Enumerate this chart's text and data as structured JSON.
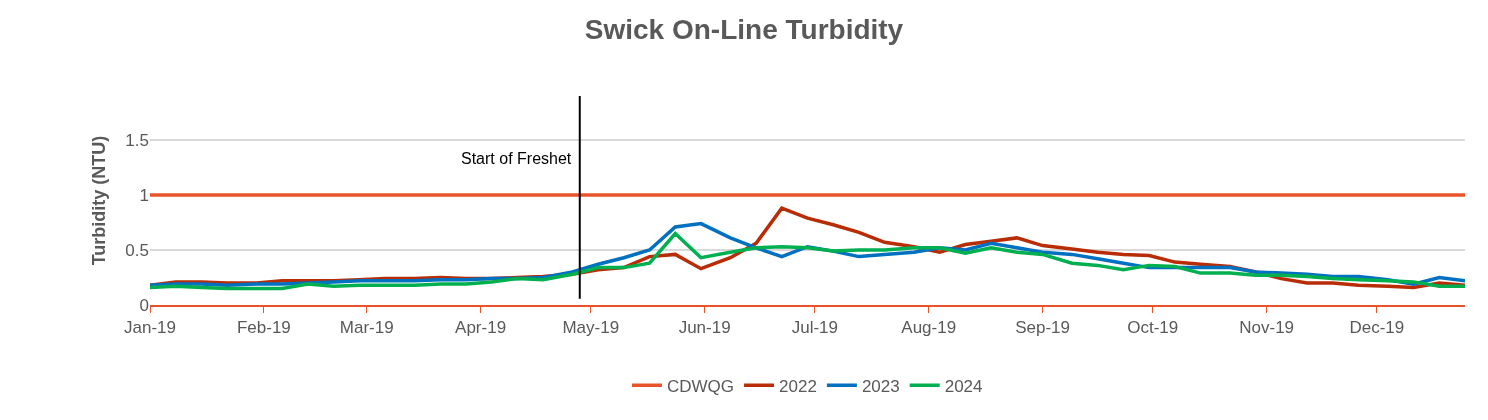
{
  "chart_data": {
    "type": "line",
    "title": "Swick On-Line Turbidity",
    "ylabel": "Turbidity (NTU)",
    "x": [
      "2019-01-01",
      "2019-01-08",
      "2019-01-15",
      "2019-01-22",
      "2019-01-30",
      "2019-02-06",
      "2019-02-13",
      "2019-02-20",
      "2019-02-27",
      "2019-03-06",
      "2019-03-14",
      "2019-03-21",
      "2019-03-28",
      "2019-04-04",
      "2019-04-11",
      "2019-04-18",
      "2019-04-26",
      "2019-05-03",
      "2019-05-10",
      "2019-05-17",
      "2019-05-24",
      "2019-05-31",
      "2019-06-08",
      "2019-06-15",
      "2019-06-22",
      "2019-06-29",
      "2019-07-06",
      "2019-07-13",
      "2019-07-20",
      "2019-07-28",
      "2019-08-04",
      "2019-08-11",
      "2019-08-18",
      "2019-08-25",
      "2019-09-01",
      "2019-09-09",
      "2019-09-16",
      "2019-09-23",
      "2019-09-30",
      "2019-10-07",
      "2019-10-14",
      "2019-10-22",
      "2019-10-29",
      "2019-11-05",
      "2019-11-12",
      "2019-11-19",
      "2019-11-26",
      "2019-12-04",
      "2019-12-11",
      "2019-12-18",
      "2019-12-25"
    ],
    "series": [
      {
        "name": "CDWQG",
        "color": "#e8542a",
        "values": [
          1,
          1,
          1,
          1,
          1,
          1,
          1,
          1,
          1,
          1,
          1,
          1,
          1,
          1,
          1,
          1,
          1,
          1,
          1,
          1,
          1,
          1,
          1,
          1,
          1,
          1,
          1,
          1,
          1,
          1,
          1,
          1,
          1,
          1,
          1,
          1,
          1,
          1,
          1,
          1,
          1,
          1,
          1,
          1,
          1,
          1,
          1,
          1,
          1,
          1,
          1
        ]
      },
      {
        "name": "2022",
        "color": "#b82c06",
        "values": [
          0.18,
          0.21,
          0.21,
          0.2,
          0.2,
          0.22,
          0.22,
          0.22,
          0.23,
          0.24,
          0.24,
          0.25,
          0.24,
          0.24,
          0.25,
          0.26,
          0.28,
          0.32,
          0.34,
          0.44,
          0.46,
          0.33,
          0.43,
          0.56,
          0.88,
          0.79,
          0.73,
          0.66,
          0.57,
          0.53,
          0.48,
          0.55,
          0.58,
          0.61,
          0.54,
          0.51,
          0.48,
          0.46,
          0.45,
          0.39,
          0.37,
          0.35,
          0.3,
          0.24,
          0.2,
          0.2,
          0.18,
          0.17,
          0.16,
          0.2,
          0.18
        ]
      },
      {
        "name": "2023",
        "color": "#0070c0",
        "values": [
          0.18,
          0.19,
          0.19,
          0.18,
          0.19,
          0.19,
          0.2,
          0.21,
          0.22,
          0.22,
          0.22,
          0.23,
          0.23,
          0.24,
          0.24,
          0.25,
          0.3,
          0.37,
          0.43,
          0.5,
          0.71,
          0.74,
          0.61,
          0.52,
          0.44,
          0.53,
          0.49,
          0.44,
          0.46,
          0.48,
          0.52,
          0.5,
          0.56,
          0.52,
          0.48,
          0.46,
          0.42,
          0.38,
          0.34,
          0.34,
          0.34,
          0.34,
          0.3,
          0.29,
          0.28,
          0.26,
          0.26,
          0.23,
          0.19,
          0.25,
          0.22
        ]
      },
      {
        "name": "2024",
        "color": "#00b050",
        "values": [
          0.16,
          0.17,
          0.16,
          0.15,
          0.15,
          0.15,
          0.19,
          0.17,
          0.18,
          0.18,
          0.18,
          0.19,
          0.19,
          0.21,
          0.24,
          0.23,
          0.28,
          0.34,
          0.34,
          0.38,
          0.65,
          0.43,
          0.48,
          0.52,
          0.53,
          0.52,
          0.49,
          0.5,
          0.5,
          0.52,
          0.52,
          0.47,
          0.52,
          0.48,
          0.46,
          0.38,
          0.36,
          0.32,
          0.36,
          0.35,
          0.29,
          0.29,
          0.27,
          0.27,
          0.26,
          0.24,
          0.23,
          0.22,
          0.21,
          0.17,
          0.17
        ]
      }
    ],
    "xlim": [
      "2019-01-01",
      "2019-12-25"
    ],
    "xticks": [
      {
        "value": "2019-01-01",
        "label": "Jan-19"
      },
      {
        "value": "2019-02-01",
        "label": "Feb-19"
      },
      {
        "value": "2019-03-01",
        "label": "Mar-19"
      },
      {
        "value": "2019-04-01",
        "label": "Apr-19"
      },
      {
        "value": "2019-05-01",
        "label": "May-19"
      },
      {
        "value": "2019-06-01",
        "label": "Jun-19"
      },
      {
        "value": "2019-07-01",
        "label": "Jul-19"
      },
      {
        "value": "2019-08-01",
        "label": "Aug-19"
      },
      {
        "value": "2019-09-01",
        "label": "Sep-19"
      },
      {
        "value": "2019-10-01",
        "label": "Oct-19"
      },
      {
        "value": "2019-11-01",
        "label": "Nov-19"
      },
      {
        "value": "2019-12-01",
        "label": "Dec-19"
      }
    ],
    "ylim": [
      0,
      1.9
    ],
    "yticks": [
      0,
      0.5,
      1,
      1.5
    ],
    "ref_lines": [
      {
        "axis": "x",
        "value": "2019-04-28",
        "label": "Start of Freshet",
        "color": "#000000"
      }
    ],
    "grid": "y",
    "legend": "bottom",
    "marker": "none",
    "line_style": "solid"
  }
}
